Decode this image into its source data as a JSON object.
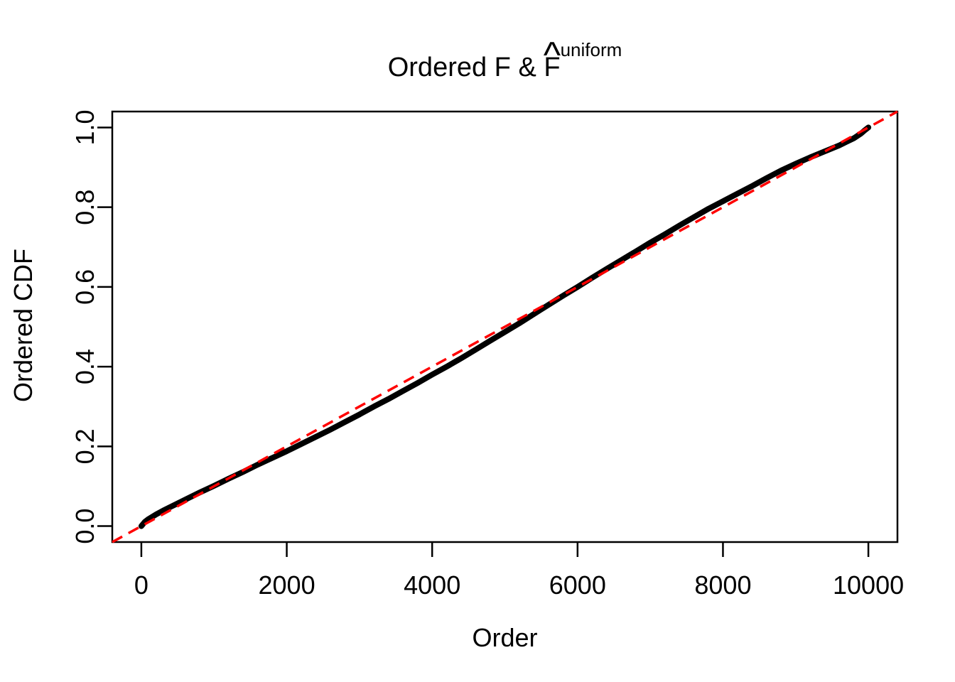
{
  "chart_data": {
    "type": "line",
    "title": "Ordered F & F̂^uniform",
    "title_parts": {
      "prefix": "Ordered F & ",
      "hat_base": "F",
      "hat_symbol": "^",
      "superscript": "uniform"
    },
    "xlabel": "Order",
    "ylabel": "Ordered CDF",
    "xlim": [
      -400,
      10400
    ],
    "ylim": [
      -0.04,
      1.04
    ],
    "grid": false,
    "legend": null,
    "background_color": "#FFFFFF",
    "axis_color": "#000000",
    "xticks": {
      "values": [
        0,
        2000,
        4000,
        6000,
        8000,
        10000
      ],
      "labels": [
        "0",
        "2000",
        "4000",
        "6000",
        "8000",
        "10000"
      ]
    },
    "yticks": {
      "values": [
        0.0,
        0.2,
        0.4,
        0.6,
        0.8,
        1.0
      ],
      "labels": [
        "0.0",
        "0.2",
        "0.4",
        "0.6",
        "0.8",
        "1.0"
      ]
    },
    "series": [
      {
        "name": "ordered_cdf",
        "type": "line",
        "color": "#000000",
        "line_width": 8,
        "x": [
          0,
          50,
          100,
          200,
          300,
          400,
          600,
          800,
          1000,
          1200,
          1400,
          1600,
          1800,
          2000,
          2200,
          2400,
          2600,
          2800,
          3000,
          3200,
          3400,
          3600,
          3800,
          4000,
          4200,
          4400,
          4600,
          4800,
          5000,
          5200,
          5400,
          5600,
          5800,
          6000,
          6200,
          6400,
          6600,
          6800,
          7000,
          7200,
          7400,
          7600,
          7800,
          8000,
          8200,
          8400,
          8600,
          8800,
          9000,
          9200,
          9400,
          9600,
          9700,
          9800,
          9900,
          9950,
          10000
        ],
        "y": [
          0.0,
          0.011,
          0.018,
          0.029,
          0.039,
          0.048,
          0.066,
          0.084,
          0.101,
          0.119,
          0.136,
          0.154,
          0.171,
          0.188,
          0.206,
          0.224,
          0.242,
          0.261,
          0.28,
          0.3,
          0.319,
          0.339,
          0.359,
          0.38,
          0.4,
          0.421,
          0.443,
          0.465,
          0.487,
          0.509,
          0.532,
          0.555,
          0.578,
          0.6,
          0.623,
          0.645,
          0.667,
          0.689,
          0.711,
          0.732,
          0.754,
          0.775,
          0.796,
          0.815,
          0.834,
          0.853,
          0.873,
          0.892,
          0.909,
          0.925,
          0.94,
          0.955,
          0.964,
          0.973,
          0.985,
          0.993,
          1.0
        ]
      }
    ],
    "reference_line": {
      "name": "uniform_diagonal",
      "slope": 0.0001,
      "intercept": 0,
      "color": "#FF0000",
      "line_width": 3.5,
      "dash": [
        16,
        10
      ]
    }
  }
}
